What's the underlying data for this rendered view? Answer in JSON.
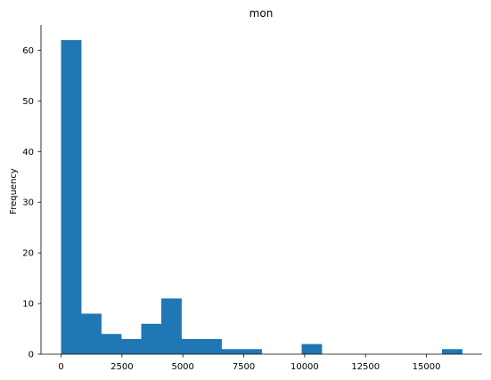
{
  "chart_data": {
    "type": "bar",
    "title": "mon",
    "xlabel": "",
    "ylabel": "Frequency",
    "bins": [
      [
        0,
        823,
        62
      ],
      [
        823,
        1646,
        8
      ],
      [
        1646,
        2469,
        4
      ],
      [
        2469,
        3292,
        3
      ],
      [
        3292,
        4115,
        6
      ],
      [
        4115,
        4938,
        11
      ],
      [
        4938,
        5761,
        3
      ],
      [
        5761,
        6584,
        3
      ],
      [
        6584,
        7407,
        1
      ],
      [
        7407,
        8230,
        1
      ],
      [
        8230,
        9053,
        0
      ],
      [
        9053,
        9876,
        0
      ],
      [
        9876,
        10699,
        2
      ],
      [
        10699,
        11522,
        0
      ],
      [
        11522,
        12345,
        0
      ],
      [
        12345,
        13168,
        0
      ],
      [
        13168,
        13991,
        0
      ],
      [
        13991,
        14814,
        0
      ],
      [
        14814,
        15637,
        0
      ],
      [
        15637,
        16460,
        1
      ]
    ],
    "xticks": [
      "0",
      "2500",
      "5000",
      "7500",
      "10000",
      "12500",
      "15000"
    ],
    "yticks": [
      "0",
      "10",
      "20",
      "30",
      "40",
      "50",
      "60"
    ],
    "xlim": [
      -823,
      17283
    ],
    "ylim": [
      0,
      65
    ],
    "grid": false,
    "bar_color": "#1f77b4"
  }
}
